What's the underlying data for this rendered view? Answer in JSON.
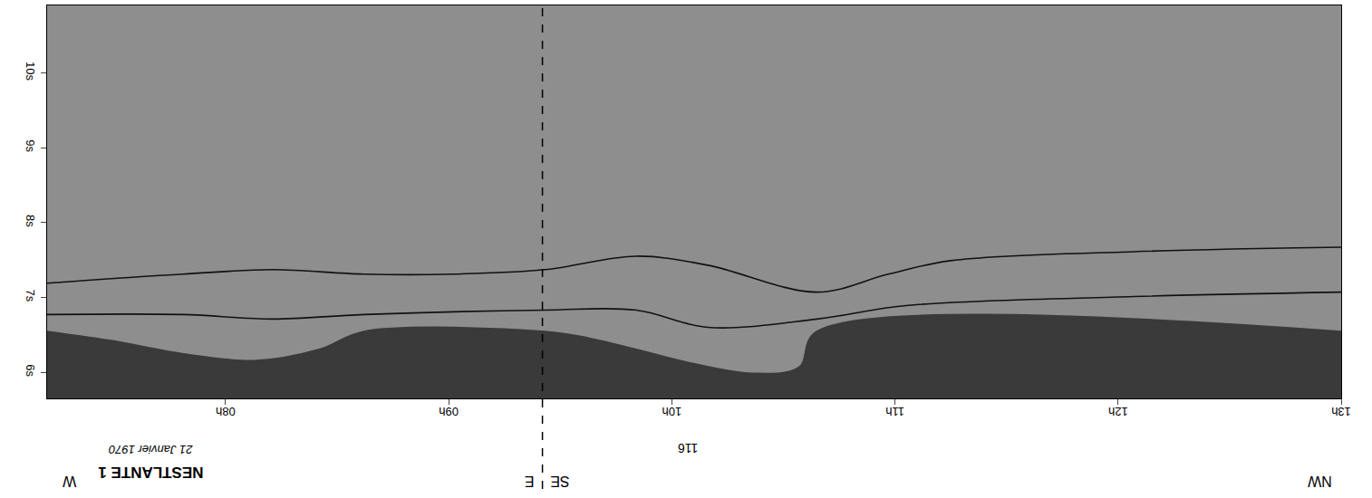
{
  "chart_data": {
    "type": "line",
    "title": "NESTLANTE 1",
    "subtitle": "21 Janvier 1970",
    "xlim": [
      7.2,
      13.0
    ],
    "xticks": [
      {
        "value": 8,
        "label": "08h"
      },
      {
        "value": 9,
        "label": "09h"
      },
      {
        "value": 10,
        "label": "10h"
      },
      {
        "value": 11,
        "label": "11h"
      },
      {
        "value": 12,
        "label": "12h"
      },
      {
        "value": 13,
        "label": "13h"
      }
    ],
    "ylim": [
      5.65,
      10.9
    ],
    "yticks": [
      {
        "value": 6,
        "label": "6s"
      },
      {
        "value": 7,
        "label": "7s"
      },
      {
        "value": 8,
        "label": "8s"
      },
      {
        "value": 9,
        "label": "9s"
      },
      {
        "value": 10,
        "label": "10s"
      }
    ],
    "grid": false,
    "series": [
      {
        "type": "area",
        "color": "#3a3a3a",
        "x": [
          7.2,
          7.48,
          7.81,
          8.13,
          8.42,
          8.62,
          9.43,
          9.63,
          9.84,
          10.08,
          10.36,
          10.57,
          10.65,
          13.0
        ],
        "values": [
          6.54,
          6.42,
          6.24,
          6.15,
          6.3,
          6.54,
          6.54,
          6.45,
          6.3,
          6.12,
          5.98,
          6.06,
          6.54,
          6.54
        ]
      },
      {
        "type": "line",
        "color": "#111111",
        "x": [
          7.2,
          7.81,
          8.21,
          8.62,
          9.02,
          9.43,
          9.84,
          10.16,
          10.65,
          10.97,
          11.25,
          12.07,
          13.0
        ],
        "values": [
          7.19,
          7.31,
          7.37,
          7.31,
          7.31,
          7.37,
          7.55,
          7.43,
          7.07,
          7.31,
          7.49,
          7.61,
          7.67
        ]
      },
      {
        "type": "line",
        "color": "#111111",
        "x": [
          7.2,
          7.81,
          8.21,
          8.62,
          9.43,
          9.84,
          10.16,
          10.65,
          11.05,
          12.07,
          13.0
        ],
        "values": [
          6.77,
          6.77,
          6.71,
          6.77,
          6.83,
          6.83,
          6.6,
          6.71,
          6.89,
          7.01,
          7.07
        ]
      }
    ],
    "lines": [
      {
        "x": 9.42,
        "line_style": "dashed"
      }
    ],
    "annotations": [
      {
        "text": "W",
        "x": 7.3
      },
      {
        "text": "E",
        "x": 9.36
      },
      {
        "text": "SE",
        "x": 9.5
      },
      {
        "text": "NW",
        "x": 12.9
      },
      {
        "text": "116",
        "x": 10.07
      }
    ]
  }
}
